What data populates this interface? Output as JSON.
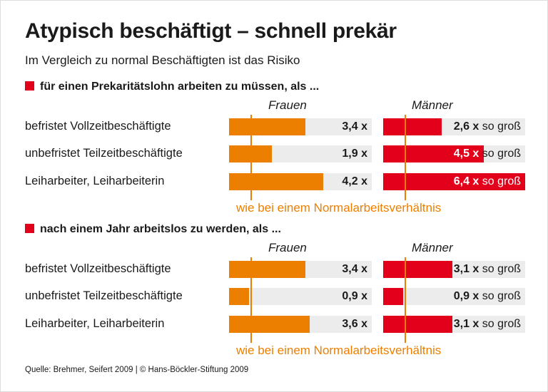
{
  "title": "Atypisch beschäftigt – schnell prekär",
  "subtitle": "Im Vergleich zu normal Beschäftigten ist das Risiko",
  "source": "Quelle: Brehmer, Seifert 2009 | © Hans-Böckler-Stiftung 2009",
  "colors": {
    "frauen": "#ec7f00",
    "maenner": "#e2001a",
    "track": "#ececec"
  },
  "chart_data": [
    {
      "type": "bar",
      "title": "für einen Prekaritätslohn arbeiten zu müssen, als ...",
      "categories": [
        "befristet Vollzeitbeschäftigte",
        "unbefristet Teilzeitbeschäftigte",
        "Leiharbeiter, Leiharbeiterin"
      ],
      "reference": {
        "value": 1,
        "label": "wie bei einem Normalarbeitsverhältnis"
      },
      "xlim": [
        0,
        6.4
      ],
      "series": [
        {
          "name": "Frauen",
          "values": [
            3.4,
            1.9,
            4.2
          ],
          "labels": [
            "3,4",
            "1,9",
            "4,2"
          ],
          "suffix": " x"
        },
        {
          "name": "Männer",
          "values": [
            2.6,
            4.5,
            6.4
          ],
          "labels": [
            "2,6",
            "4,5",
            "6,4"
          ],
          "suffix": " x so groß"
        }
      ]
    },
    {
      "type": "bar",
      "title": "nach einem Jahr arbeitslos zu werden, als ...",
      "categories": [
        "befristet Vollzeitbeschäftigte",
        "unbefristet Teilzeitbeschäftigte",
        "Leiharbeiter, Leiharbeiterin"
      ],
      "reference": {
        "value": 1,
        "label": "wie bei einem Normalarbeitsverhältnis"
      },
      "xlim": [
        0,
        6.4
      ],
      "series": [
        {
          "name": "Frauen",
          "values": [
            3.4,
            0.9,
            3.6
          ],
          "labels": [
            "3,4",
            "0,9",
            "3,6"
          ],
          "suffix": " x"
        },
        {
          "name": "Männer",
          "values": [
            3.1,
            0.9,
            3.1
          ],
          "labels": [
            "3,1",
            "0,9",
            "3,1"
          ],
          "suffix": " x so groß"
        }
      ]
    }
  ]
}
